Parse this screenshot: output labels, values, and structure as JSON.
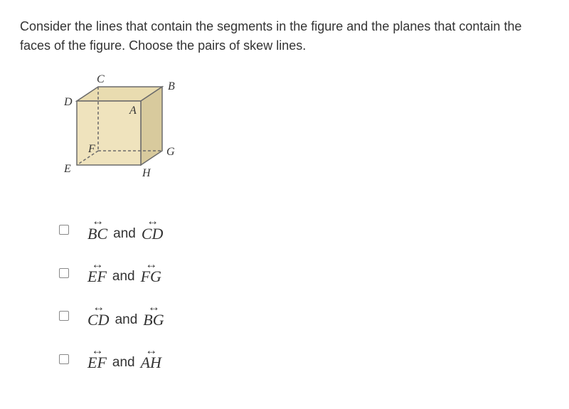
{
  "question": "Consider the lines that contain the segments in the figure and the planes that contain the faces of the figure. Choose the pairs of skew lines.",
  "cube": {
    "labels": {
      "A": "A",
      "B": "B",
      "C": "C",
      "D": "D",
      "E": "E",
      "F": "F",
      "G": "G",
      "H": "H"
    },
    "face_fill": "#efe3bd",
    "top_fill": "#e9dcb0",
    "side_fill": "#d8ca9d",
    "stroke": "#6b6b6b",
    "dash": "4,3",
    "label_font": "italic 16px 'Times New Roman', serif",
    "label_color": "#333333"
  },
  "arrow_glyph": "↔",
  "and_word": "and",
  "options": [
    {
      "a": "BC",
      "b": "CD"
    },
    {
      "a": "EF",
      "b": "FG"
    },
    {
      "a": "CD",
      "b": "BG"
    },
    {
      "a": "EF",
      "b": "AH"
    }
  ]
}
